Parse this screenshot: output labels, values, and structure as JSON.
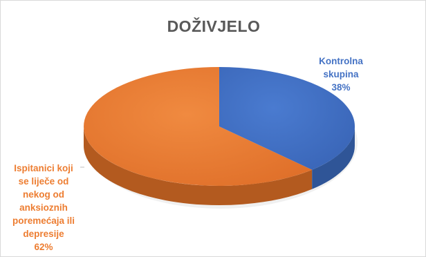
{
  "chart_data": {
    "type": "pie",
    "title": "DOŽIVJELO",
    "slices": [
      {
        "label_lines": [
          "Kontrolna",
          "skupina"
        ],
        "value": 38,
        "value_label": "38%",
        "color": "#4472c4",
        "shade": "#2f5597"
      },
      {
        "label_lines": [
          "Ispitanici koji",
          "se liječe od",
          "nekog od",
          "anksioznih",
          "poremećaja ili",
          "depresije"
        ],
        "value": 62,
        "value_label": "62%",
        "color": "#ed7d31",
        "shade": "#b35a1f"
      }
    ],
    "style": "3d"
  }
}
